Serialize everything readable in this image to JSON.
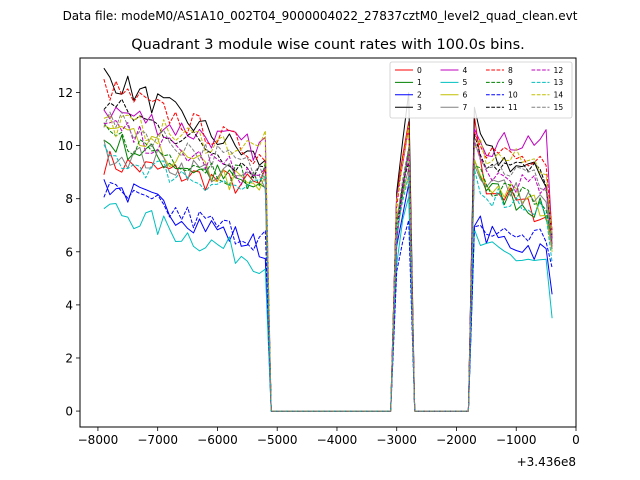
{
  "header": {
    "file_label": "Data file: modeM0/AS1A10_002T04_9000004022_27837cztM0_level2_quad_clean.evt"
  },
  "chart_data": {
    "type": "line",
    "title": "Quadrant 3 module wise count rates with 100.0s bins.",
    "xlabel": "",
    "ylabel": "",
    "x_offset_label": "+3.436e8",
    "xlim": [
      -8300,
      0
    ],
    "ylim": [
      -0.6,
      13.3
    ],
    "xticks": [
      -8000,
      -7000,
      -6000,
      -5000,
      -4000,
      -3000,
      -2000,
      -1000,
      0
    ],
    "xtick_labels": [
      "−8000",
      "−7000",
      "−6000",
      "−5000",
      "−4000",
      "−3000",
      "−2000",
      "−1000",
      "0"
    ],
    "yticks": [
      0,
      2,
      4,
      6,
      8,
      10,
      12
    ],
    "ytick_labels": [
      "0",
      "2",
      "4",
      "6",
      "8",
      "10",
      "12"
    ],
    "legend_position": "top-right",
    "legend_columns": 4,
    "segments": [
      {
        "start": -7900,
        "end": -5200,
        "step": 100
      },
      {
        "start": -5100,
        "end": -3100,
        "step": 100
      },
      {
        "start": -3000,
        "end": -2700,
        "step": 100
      },
      {
        "start": -2600,
        "end": -1800,
        "step": 100
      },
      {
        "start": -1700,
        "end": -400,
        "step": 100
      }
    ],
    "series": [
      {
        "name": "0",
        "color": "#ff0000",
        "dash": "solid",
        "start": 9.4,
        "end": 8.4,
        "peak": 11.0,
        "late": [
          10.8,
          8.5,
          7.3,
          6.2
        ]
      },
      {
        "name": "1",
        "color": "#008000",
        "dash": "solid",
        "start": 10.2,
        "end": 8.3,
        "peak": 9.8,
        "late": [
          9.6,
          8.4,
          7.5,
          6.6
        ]
      },
      {
        "name": "2",
        "color": "#0000ff",
        "dash": "solid",
        "start": 8.6,
        "end": 6.1,
        "peak": 8.3,
        "late": [
          7.4,
          6.6,
          6.0,
          4.4
        ]
      },
      {
        "name": "3",
        "color": "#000000",
        "dash": "solid",
        "start": 12.7,
        "end": 9.3,
        "peak": 11.7,
        "late": [
          11.0,
          9.7,
          8.8,
          6.6
        ]
      },
      {
        "name": "4",
        "color": "#bf00bf",
        "dash": "solid",
        "start": 11.4,
        "end": 9.8,
        "peak": 10.9,
        "late": [
          11.0,
          10.0,
          10.3,
          6.5
        ]
      },
      {
        "name": "5",
        "color": "#00bfbf",
        "dash": "solid",
        "start": 7.7,
        "end": 5.6,
        "peak": 7.9,
        "late": [
          6.6,
          6.0,
          5.6,
          3.5
        ]
      },
      {
        "name": "6",
        "color": "#bfbf00",
        "dash": "solid",
        "start": 10.6,
        "end": 8.2,
        "peak": 9.0,
        "late": [
          9.3,
          8.6,
          7.6,
          6.0
        ]
      },
      {
        "name": "7",
        "color": "#808080",
        "dash": "solid",
        "start": 9.8,
        "end": 8.6,
        "peak": 9.3,
        "late": [
          9.2,
          8.7,
          7.8,
          6.1
        ]
      },
      {
        "name": "8",
        "color": "#ff0000",
        "dash": "dashed",
        "start": 12.2,
        "end": 9.6,
        "peak": 10.8,
        "late": [
          10.9,
          9.9,
          9.1,
          6.8
        ]
      },
      {
        "name": "9",
        "color": "#008000",
        "dash": "dashed",
        "start": 10.4,
        "end": 8.6,
        "peak": 9.6,
        "late": [
          9.5,
          8.6,
          7.8,
          6.4
        ]
      },
      {
        "name": "10",
        "color": "#0000ff",
        "dash": "dashed",
        "start": 8.3,
        "end": 6.4,
        "peak": 7.0,
        "late": [
          7.2,
          6.7,
          6.6,
          5.4
        ]
      },
      {
        "name": "11",
        "color": "#000000",
        "dash": "dashed",
        "start": 11.6,
        "end": 9.0,
        "peak": 9.5,
        "late": [
          10.6,
          9.4,
          8.9,
          6.3
        ]
      },
      {
        "name": "12",
        "color": "#bf00bf",
        "dash": "dashed",
        "start": 10.7,
        "end": 8.7,
        "peak": 9.4,
        "late": [
          9.8,
          9.0,
          8.3,
          6.3
        ]
      },
      {
        "name": "13",
        "color": "#00bfbf",
        "dash": "dashed",
        "start": 9.6,
        "end": 8.2,
        "peak": 8.9,
        "late": [
          9.0,
          8.2,
          7.6,
          5.6
        ]
      },
      {
        "name": "14",
        "color": "#bfbf00",
        "dash": "dashed",
        "start": 10.9,
        "end": 9.8,
        "peak": 10.6,
        "late": [
          10.2,
          9.6,
          9.3,
          6.6
        ]
      },
      {
        "name": "15",
        "color": "#808080",
        "dash": "dashed",
        "start": 11.0,
        "end": 9.0,
        "peak": 10.2,
        "late": [
          10.2,
          9.4,
          8.6,
          6.2
        ]
      }
    ]
  }
}
